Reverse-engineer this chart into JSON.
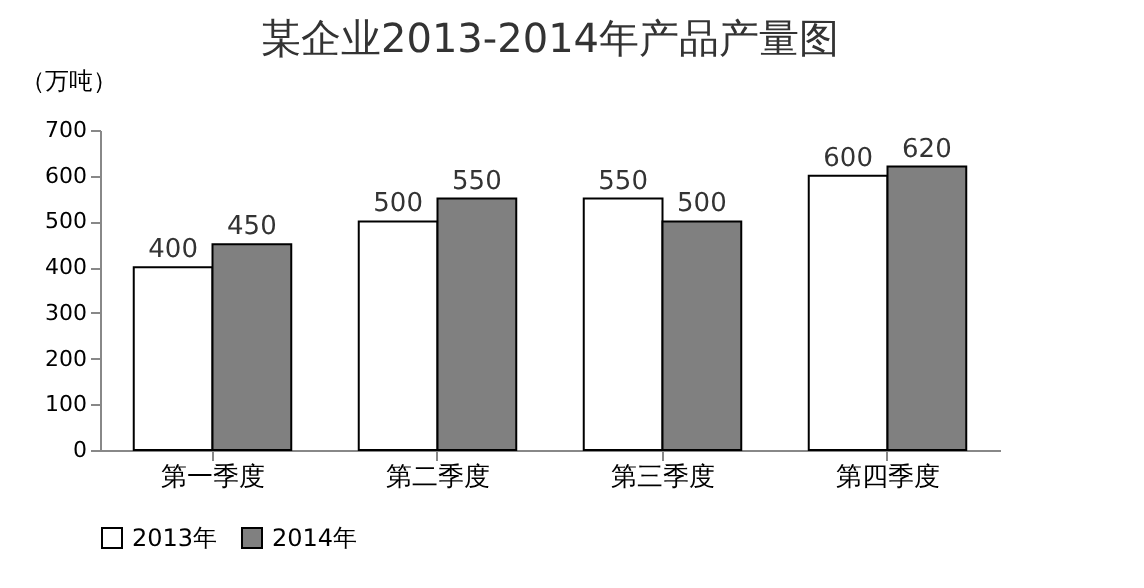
{
  "chart_data": {
    "type": "bar",
    "title": "某企业2013-2014年产品产量图",
    "ylabel": "（万吨）",
    "categories": [
      "第一季度",
      "第二季度",
      "第三季度",
      "第四季度"
    ],
    "series": [
      {
        "name": "2013年",
        "color": "#ffffff",
        "values": [
          400,
          500,
          550,
          600
        ]
      },
      {
        "name": "2014年",
        "color": "#808080",
        "values": [
          450,
          550,
          500,
          620
        ]
      }
    ],
    "ylim": [
      0,
      700
    ],
    "yticks": [
      0,
      100,
      200,
      300,
      400,
      500,
      600,
      700
    ],
    "grid": false,
    "legend": "bottom",
    "data_labels": true
  }
}
